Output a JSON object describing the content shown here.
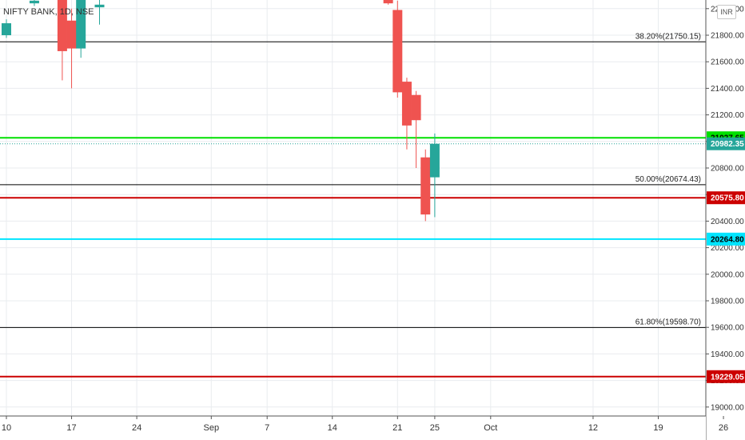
{
  "header": {
    "symbol": "NIFTY BANK, 1D, NSE",
    "currency": "INR"
  },
  "colors": {
    "up": "#26a69a",
    "down": "#ef5350",
    "grid": "#e9ecef",
    "fib": "#000000",
    "green_line": "#00e000",
    "red_line": "#cc0000",
    "cyan_line": "#00e5ff",
    "price_badge": "#26a69a"
  },
  "chart_data": {
    "type": "candlestick",
    "title": "NIFTY BANK, 1D, NSE",
    "y_ticks": [
      19000,
      19200,
      19400,
      19600,
      19800,
      20000,
      20200,
      20400,
      20600,
      20800,
      21000,
      21200,
      21400,
      21600,
      21800,
      22000
    ],
    "y_tick_labels": [
      "19000.00",
      "19200.00",
      "19400.00",
      "19600.00",
      "19800.00",
      "20000.00",
      "20200.00",
      "20400.00",
      "20600.00",
      "20800.00",
      "21000.00",
      "21200.00",
      "21400.00",
      "21600.00",
      "21800.00",
      "22000.00"
    ],
    "x_ticks": [
      {
        "label": "10",
        "date": "2018-08-10"
      },
      {
        "label": "17",
        "date": "2018-08-17"
      },
      {
        "label": "24",
        "date": "2018-08-24"
      },
      {
        "label": "Sep",
        "date": "2018-09-01"
      },
      {
        "label": "7",
        "date": "2018-09-07"
      },
      {
        "label": "14",
        "date": "2018-09-14"
      },
      {
        "label": "21",
        "date": "2018-09-21"
      },
      {
        "label": "25",
        "date": "2018-09-25"
      },
      {
        "label": "Oct",
        "date": "2018-10-01"
      },
      {
        "label": "12",
        "date": "2018-10-12"
      },
      {
        "label": "19",
        "date": "2018-10-19"
      },
      {
        "label": "26",
        "date": "2018-10-26"
      }
    ],
    "candles": [
      {
        "date": "2018-08-10",
        "open": 21800,
        "high": 21920,
        "low": 21780,
        "close": 21890
      },
      {
        "date": "2018-08-13",
        "open": 22040,
        "high": 22090,
        "low": 22020,
        "close": 22060
      },
      {
        "date": "2018-08-16",
        "open": 22100,
        "high": 22180,
        "low": 21460,
        "close": 21680
      },
      {
        "date": "2018-08-17",
        "open": 21910,
        "high": 22000,
        "low": 21400,
        "close": 21700
      },
      {
        "date": "2018-08-18",
        "open": 21700,
        "high": 22200,
        "low": 21630,
        "close": 22150
      },
      {
        "date": "2018-08-20",
        "open": 22010,
        "high": 22100,
        "low": 21880,
        "close": 22030
      },
      {
        "date": "2018-09-20",
        "open": 22100,
        "high": 22150,
        "low": 22030,
        "close": 22040
      },
      {
        "date": "2018-09-21",
        "open": 21990,
        "high": 22060,
        "low": 21330,
        "close": 21370
      },
      {
        "date": "2018-09-22",
        "open": 21450,
        "high": 21480,
        "low": 20940,
        "close": 21120
      },
      {
        "date": "2018-09-23",
        "open": 21350,
        "high": 21380,
        "low": 20800,
        "close": 21160
      },
      {
        "date": "2018-09-24",
        "open": 20880,
        "high": 20940,
        "low": 20400,
        "close": 20450
      },
      {
        "date": "2018-09-25",
        "open": 20730,
        "high": 21060,
        "low": 20430,
        "close": 20982.35
      }
    ],
    "horizontal_lines": [
      {
        "name": "fib-38",
        "value": 21750.15,
        "label": "38.20%(21750.15)",
        "style": "fib"
      },
      {
        "name": "fib-50",
        "value": 20674.43,
        "label": "50.00%(20674.43)",
        "style": "fib"
      },
      {
        "name": "fib-61",
        "value": 19598.7,
        "label": "61.80%(19598.70)",
        "style": "fib"
      },
      {
        "name": "green-level",
        "value": 21027.65,
        "badge": "21027.65",
        "style": "green"
      },
      {
        "name": "red-level",
        "value": 20575.8,
        "badge": "20575.80",
        "style": "red"
      },
      {
        "name": "cyan-level",
        "value": 20264.8,
        "badge": "20264.80",
        "style": "cyan"
      },
      {
        "name": "red-level-low",
        "value": 19229.05,
        "badge": "19229.05",
        "style": "red"
      }
    ],
    "last_price": {
      "value": 20982.35,
      "label": "20982.35"
    },
    "grid": true
  }
}
